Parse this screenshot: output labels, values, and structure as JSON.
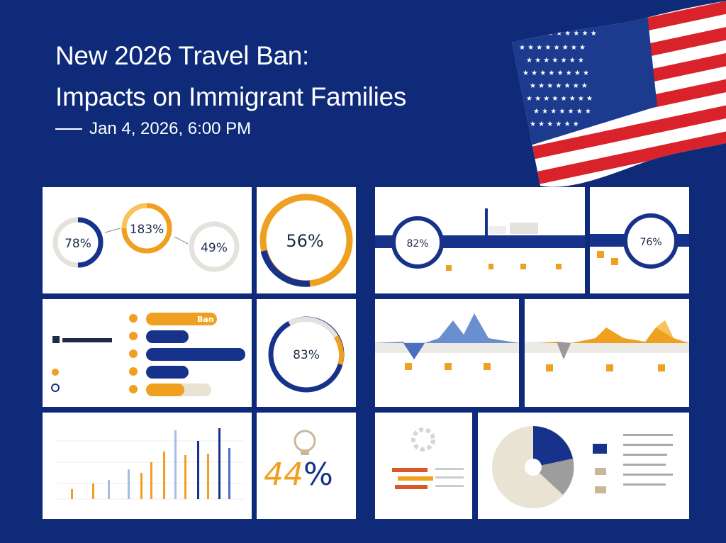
{
  "header": {
    "title_line1": "New 2026 Travel Ban:",
    "title_line2": "Impacts on Immigrant Families",
    "date": "Jan 4, 2026, 6:00 PM"
  },
  "colors": {
    "background": "#0e2a78",
    "navy": "#17328a",
    "orange": "#f0a020",
    "gray": "#d9d6ce",
    "flag_red": "#d9222a"
  },
  "icons": [
    "us-flag-icon",
    "award-badge-icon"
  ],
  "panels": {
    "donut_flow": {
      "left": "78%",
      "center": "183%",
      "right": "49%"
    },
    "donut_large": {
      "value": "56%"
    },
    "bar_panel": {
      "top_bar_label": "Ban"
    },
    "donut_medium": {
      "value": "83%"
    },
    "big_percent": {
      "number": "44",
      "sign": "%"
    },
    "timeline": {
      "left": "82%"
    },
    "gauge_right": {
      "value": "76%"
    }
  }
}
